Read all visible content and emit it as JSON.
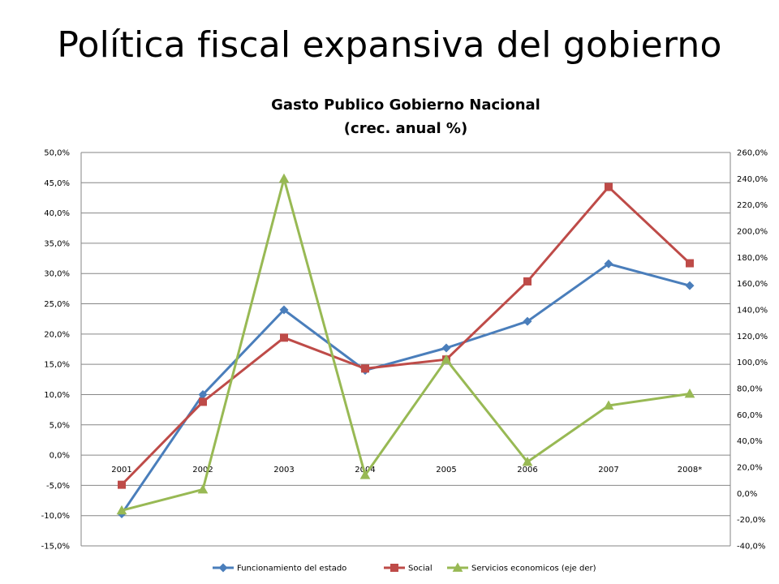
{
  "slide": {
    "title": "Política fiscal expansiva del gobierno"
  },
  "chart_data": {
    "type": "line",
    "title": "Gasto Publico Gobierno Nacional",
    "subtitle": "(crec. anual %)",
    "categories": [
      "2001",
      "2002",
      "2003",
      "2004",
      "2005",
      "2006",
      "2007",
      "2008*"
    ],
    "y_left": {
      "range": [
        -15,
        50
      ],
      "step": 5,
      "tick_labels": [
        "-15,0%",
        "-10,0%",
        "-5,0%",
        "0,0%",
        "5,0%",
        "10,0%",
        "15,0%",
        "20,0%",
        "25,0%",
        "30,0%",
        "35,0%",
        "40,0%",
        "45,0%",
        "50,0%"
      ]
    },
    "y_right": {
      "range": [
        -40,
        260
      ],
      "step": 20,
      "tick_labels": [
        "-40,0%",
        "-20,0%",
        "0,0%",
        "20,0%",
        "40,0%",
        "60,0%",
        "80,0%",
        "100,0%",
        "120,0%",
        "140,0%",
        "160,0%",
        "180,0%",
        "200,0%",
        "220,0%",
        "240,0%",
        "260,0%"
      ]
    },
    "grid": "horizontal",
    "legend_position": "bottom",
    "series": [
      {
        "name": "Funcionamiento del estado",
        "axis": "left",
        "color": "#4A7EBB",
        "marker": "diamond",
        "values": [
          -9.7,
          10.0,
          24.0,
          14.0,
          17.7,
          22.1,
          31.6,
          28.0
        ]
      },
      {
        "name": "Social",
        "axis": "left",
        "color": "#BE4B48",
        "marker": "square",
        "values": [
          -4.9,
          8.8,
          19.4,
          14.3,
          15.8,
          28.7,
          44.3,
          31.7
        ]
      },
      {
        "name": "Servicios economicos (eje der)",
        "axis": "right",
        "color": "#98B954",
        "marker": "triangle",
        "values": [
          -13.0,
          3.0,
          240.0,
          14.0,
          102.0,
          24.0,
          67.0,
          76.0
        ]
      }
    ]
  }
}
